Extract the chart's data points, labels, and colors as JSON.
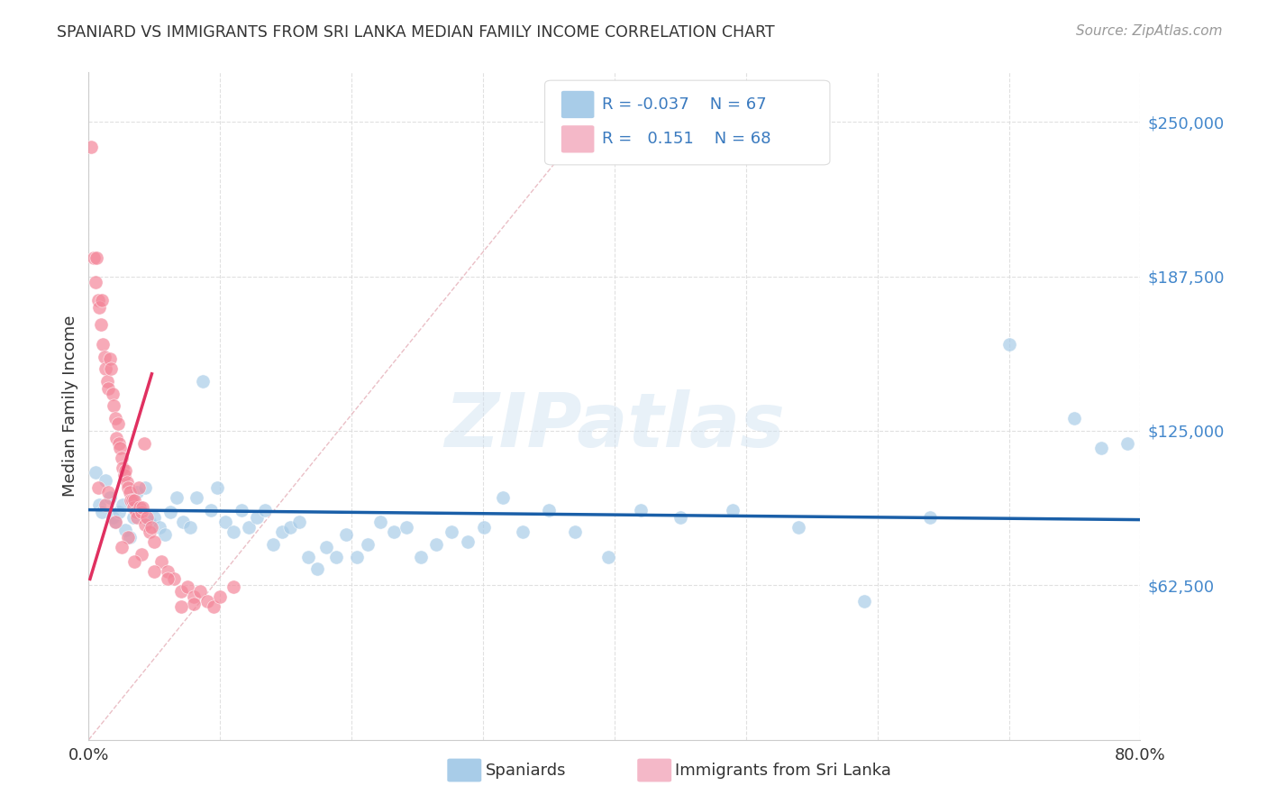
{
  "title": "SPANIARD VS IMMIGRANTS FROM SRI LANKA MEDIAN FAMILY INCOME CORRELATION CHART",
  "source": "Source: ZipAtlas.com",
  "ylabel": "Median Family Income",
  "ytick_labels": [
    "$62,500",
    "$125,000",
    "$187,500",
    "$250,000"
  ],
  "ytick_values": [
    62500,
    125000,
    187500,
    250000
  ],
  "ymin": 0,
  "ymax": 270000,
  "xmin": 0.0,
  "xmax": 0.8,
  "watermark": "ZIPatlas",
  "legend_blue_r": "-0.037",
  "legend_blue_n": "67",
  "legend_pink_r": "0.151",
  "legend_pink_n": "68",
  "legend_blue_label": "Spaniards",
  "legend_pink_label": "Immigrants from Sri Lanka",
  "blue_color": "#a8cce8",
  "pink_color": "#f4b8c8",
  "blue_scatter_color": "#a8cce8",
  "pink_scatter_color": "#f4879a",
  "trendline_blue_color": "#1a5fa8",
  "trendline_pink_color": "#e03060",
  "diagonal_color": "#e8b8c0",
  "background_color": "#ffffff",
  "grid_color": "#dddddd",
  "blue_points_x": [
    0.005,
    0.008,
    0.01,
    0.013,
    0.016,
    0.018,
    0.02,
    0.023,
    0.026,
    0.028,
    0.031,
    0.034,
    0.037,
    0.04,
    0.043,
    0.046,
    0.05,
    0.054,
    0.058,
    0.062,
    0.067,
    0.072,
    0.077,
    0.082,
    0.087,
    0.093,
    0.098,
    0.104,
    0.11,
    0.116,
    0.122,
    0.128,
    0.134,
    0.14,
    0.147,
    0.153,
    0.16,
    0.167,
    0.174,
    0.181,
    0.188,
    0.196,
    0.204,
    0.212,
    0.222,
    0.232,
    0.242,
    0.253,
    0.264,
    0.276,
    0.288,
    0.301,
    0.315,
    0.33,
    0.35,
    0.37,
    0.395,
    0.42,
    0.45,
    0.49,
    0.54,
    0.59,
    0.64,
    0.7,
    0.75,
    0.77,
    0.79
  ],
  "blue_points_y": [
    108000,
    95000,
    92000,
    105000,
    98000,
    90000,
    88000,
    92000,
    95000,
    85000,
    82000,
    90000,
    100000,
    93000,
    102000,
    88000,
    90000,
    86000,
    83000,
    92000,
    98000,
    88000,
    86000,
    98000,
    145000,
    93000,
    102000,
    88000,
    84000,
    93000,
    86000,
    90000,
    93000,
    79000,
    84000,
    86000,
    88000,
    74000,
    69000,
    78000,
    74000,
    83000,
    74000,
    79000,
    88000,
    84000,
    86000,
    74000,
    79000,
    84000,
    80000,
    86000,
    98000,
    84000,
    93000,
    84000,
    74000,
    93000,
    90000,
    93000,
    86000,
    56000,
    90000,
    160000,
    130000,
    118000,
    120000
  ],
  "pink_points_x": [
    0.002,
    0.004,
    0.005,
    0.006,
    0.007,
    0.008,
    0.009,
    0.01,
    0.011,
    0.012,
    0.013,
    0.014,
    0.015,
    0.016,
    0.017,
    0.018,
    0.019,
    0.02,
    0.021,
    0.022,
    0.023,
    0.024,
    0.025,
    0.026,
    0.027,
    0.028,
    0.029,
    0.03,
    0.031,
    0.032,
    0.033,
    0.034,
    0.035,
    0.036,
    0.037,
    0.038,
    0.039,
    0.04,
    0.041,
    0.042,
    0.043,
    0.044,
    0.046,
    0.048,
    0.05,
    0.055,
    0.06,
    0.065,
    0.07,
    0.075,
    0.08,
    0.085,
    0.09,
    0.095,
    0.1,
    0.11,
    0.007,
    0.013,
    0.02,
    0.03,
    0.04,
    0.06,
    0.08,
    0.025,
    0.015,
    0.035,
    0.05,
    0.07
  ],
  "pink_points_y": [
    240000,
    195000,
    185000,
    195000,
    178000,
    175000,
    168000,
    178000,
    160000,
    155000,
    150000,
    145000,
    142000,
    154000,
    150000,
    140000,
    135000,
    130000,
    122000,
    128000,
    120000,
    118000,
    114000,
    110000,
    107000,
    109000,
    104000,
    102000,
    100000,
    97000,
    97000,
    94000,
    97000,
    92000,
    90000,
    102000,
    94000,
    92000,
    94000,
    120000,
    87000,
    90000,
    84000,
    86000,
    80000,
    72000,
    68000,
    65000,
    60000,
    62000,
    58000,
    60000,
    56000,
    54000,
    58000,
    62000,
    102000,
    95000,
    88000,
    82000,
    75000,
    65000,
    55000,
    78000,
    100000,
    72000,
    68000,
    54000
  ]
}
